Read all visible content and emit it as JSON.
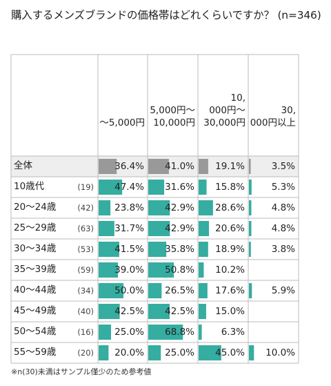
{
  "title": "購入するメンズブランドの価格帯はどれくらいですか？ (n=346)",
  "footnote": "※n(30)未満はサンプル僅少のため参考値",
  "colors": {
    "teal": "#35ada0",
    "gray": "#999999",
    "border": "#bbbbbb",
    "header_bg": "#eeeeee"
  },
  "chart_data": {
    "type": "table",
    "columns": [
      [
        "～5,000円"
      ],
      [
        "5,000円～",
        "10,000円"
      ],
      [
        "10,",
        "000円～",
        "30,000円"
      ],
      [
        "30,",
        "000円以上"
      ]
    ],
    "rows": [
      {
        "label": "全体",
        "n": "",
        "values": [
          36.4,
          41.0,
          19.1,
          3.5
        ],
        "labels": [
          "36.4%",
          "41.0%",
          "19.1%",
          "3.5%"
        ],
        "total": true
      },
      {
        "label": "10歳代",
        "n": "(19)",
        "values": [
          47.4,
          31.6,
          15.8,
          5.3
        ],
        "labels": [
          "47.4%",
          "31.6%",
          "15.8%",
          "5.3%"
        ]
      },
      {
        "label": "20～24歳",
        "n": "(42)",
        "values": [
          23.8,
          42.9,
          28.6,
          4.8
        ],
        "labels": [
          "23.8%",
          "42.9%",
          "28.6%",
          "4.8%"
        ]
      },
      {
        "label": "25～29歳",
        "n": "(63)",
        "values": [
          31.7,
          42.9,
          20.6,
          4.8
        ],
        "labels": [
          "31.7%",
          "42.9%",
          "20.6%",
          "4.8%"
        ]
      },
      {
        "label": "30～34歳",
        "n": "(53)",
        "values": [
          41.5,
          35.8,
          18.9,
          3.8
        ],
        "labels": [
          "41.5%",
          "35.8%",
          "18.9%",
          "3.8%"
        ]
      },
      {
        "label": "35～39歳",
        "n": "(59)",
        "values": [
          39.0,
          50.8,
          10.2,
          0
        ],
        "labels": [
          "39.0%",
          "50.8%",
          "10.2%",
          ""
        ]
      },
      {
        "label": "40～44歳",
        "n": "(34)",
        "values": [
          50.0,
          26.5,
          17.6,
          5.9
        ],
        "labels": [
          "50.0%",
          "26.5%",
          "17.6%",
          "5.9%"
        ]
      },
      {
        "label": "45～49歳",
        "n": "(40)",
        "values": [
          42.5,
          42.5,
          15.0,
          0
        ],
        "labels": [
          "42.5%",
          "42.5%",
          "15.0%",
          ""
        ]
      },
      {
        "label": "50～54歳",
        "n": "(16)",
        "values": [
          25.0,
          68.8,
          6.3,
          0
        ],
        "labels": [
          "25.0%",
          "68.8%",
          "6.3%",
          ""
        ]
      },
      {
        "label": "55～59歳",
        "n": "(20)",
        "values": [
          20.0,
          25.0,
          45.0,
          10.0
        ],
        "labels": [
          "20.0%",
          "25.0%",
          "45.0%",
          "10.0%"
        ]
      }
    ]
  }
}
